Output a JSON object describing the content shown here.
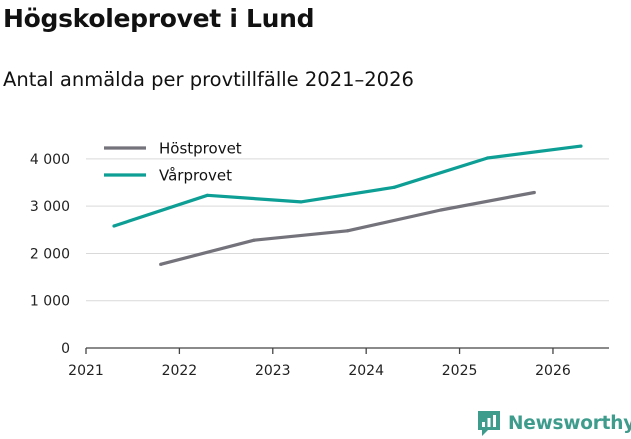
{
  "header": {
    "title": "Högskoleprovet i Lund",
    "subtitle": "Antal anmälda per provtillfälle 2021–2026"
  },
  "brand": {
    "name": "Newsworthy",
    "color": "#3e9c8d"
  },
  "chart_data": {
    "type": "line",
    "title": "Högskoleprovet i Lund",
    "subtitle": "Antal anmälda per provtillfälle 2021–2026",
    "xlabel": "",
    "ylabel": "",
    "xlim": [
      2021,
      2026.6
    ],
    "ylim": [
      0,
      4400
    ],
    "x_ticks": [
      2021,
      2022,
      2023,
      2024,
      2025,
      2026
    ],
    "x_tick_labels": [
      "2021",
      "2022",
      "2023",
      "2024",
      "2025",
      "2026"
    ],
    "y_ticks": [
      0,
      1000,
      2000,
      3000,
      4000
    ],
    "y_tick_labels": [
      "0",
      "1 000",
      "2 000",
      "3 000",
      "4 000"
    ],
    "grid": "horizontal",
    "legend_position": "top-left",
    "series": [
      {
        "name": "Höstprovet",
        "color": "#74727b",
        "x": [
          2021.8,
          2022.8,
          2023.8,
          2024.8,
          2025.8
        ],
        "values": [
          1770,
          2280,
          2480,
          2920,
          3290
        ]
      },
      {
        "name": "Vårprovet",
        "color": "#0d9e95",
        "x": [
          2021.3,
          2022.3,
          2023.3,
          2024.3,
          2025.3,
          2026.3
        ],
        "values": [
          2580,
          3230,
          3090,
          3400,
          4020,
          4270
        ]
      }
    ]
  }
}
